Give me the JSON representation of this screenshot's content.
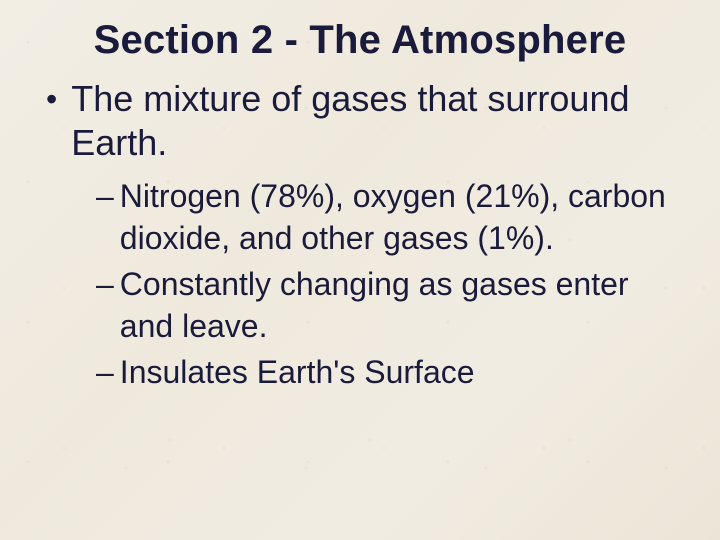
{
  "slide": {
    "title": "Section 2 - The Atmosphere",
    "title_color": "#1a1a3a",
    "title_fontsize": 40,
    "background_color": "#f0ece3",
    "body_color": "#1a1a3a",
    "bullet": {
      "marker": "•",
      "text": "The mixture of gases that surround Earth.",
      "fontsize": 36
    },
    "sub_marker": "–",
    "sub_fontsize": 32,
    "subs": [
      {
        "text": "Nitrogen (78%), oxygen (21%), carbon dioxide, and other gases (1%)."
      },
      {
        "text": "Constantly changing as gases enter and leave."
      },
      {
        "text": "Insulates Earth's Surface"
      }
    ]
  }
}
